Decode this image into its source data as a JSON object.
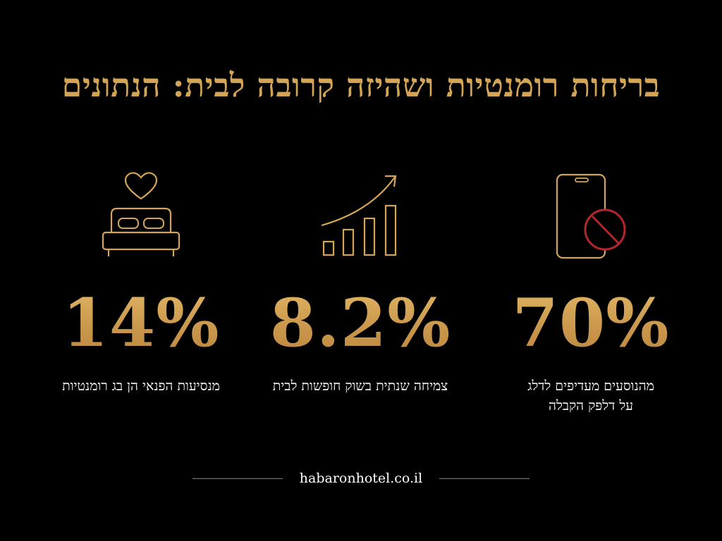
{
  "title": "בריחות רומנטיות ושהיזה קרובה לבית: הנתונים",
  "stats": [
    {
      "icon": "phone-no-icon",
      "value": "70%",
      "caption": "מהנוסעים מעדיפים לדלג\nעל דלפק הקבלה"
    },
    {
      "icon": "growth-chart-icon",
      "value": "8.2%",
      "caption": "צמיחה שנתית בשוק חופשות לבית"
    },
    {
      "icon": "bed-heart-icon",
      "value": "14%",
      "caption": "מנסיעות הפנאי הן בג רומנטיות"
    }
  ],
  "footer": {
    "site": "habaronhotel.co.il"
  },
  "colors": {
    "background": "#000000",
    "gold": "#d4a556",
    "text": "#ffffff",
    "prohibit_red": "#b3262b"
  }
}
